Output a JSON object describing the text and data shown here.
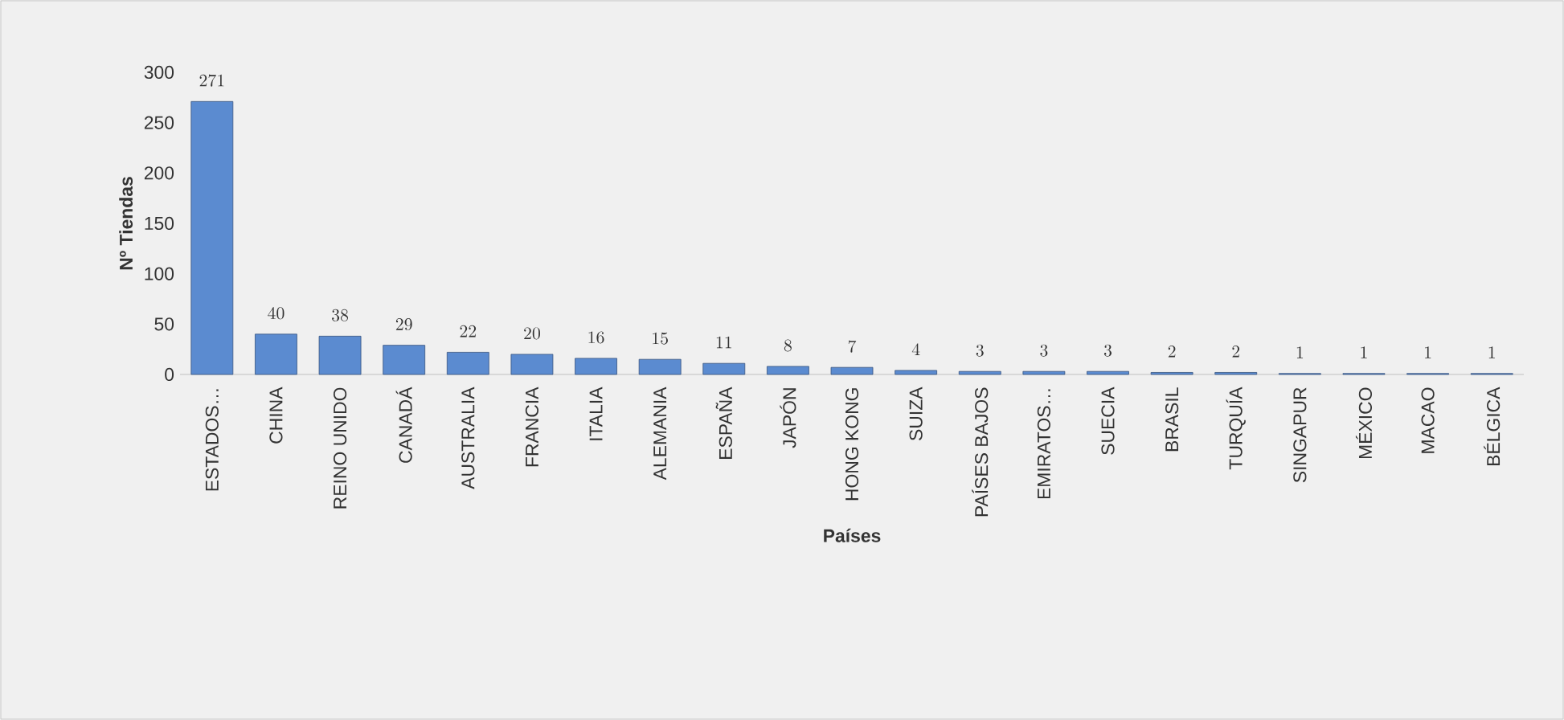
{
  "chart_data": {
    "type": "bar",
    "xlabel": "Países",
    "ylabel": "Nº Tiendas",
    "categories": [
      "ESTADOS…",
      "CHINA",
      "REINO UNIDO",
      "CANADÁ",
      "AUSTRALIA",
      "FRANCIA",
      "ITALIA",
      "ALEMANIA",
      "ESPAÑA",
      "JAPÓN",
      "HONG KONG",
      "SUIZA",
      "PAÍSES BAJOS",
      "EMIRATOS…",
      "SUECIA",
      "BRASIL",
      "TURQUÍA",
      "SINGAPUR",
      "MÉXICO",
      "MACAO",
      "BÉLGICA"
    ],
    "values": [
      271,
      40,
      38,
      29,
      22,
      20,
      16,
      15,
      11,
      8,
      7,
      4,
      3,
      3,
      3,
      2,
      2,
      1,
      1,
      1,
      1
    ],
    "color": "#5b8bd0",
    "ylim": [
      0,
      300
    ],
    "yticks": [
      0,
      50,
      100,
      150,
      200,
      250,
      300
    ],
    "data_labels": true,
    "grid": false
  }
}
